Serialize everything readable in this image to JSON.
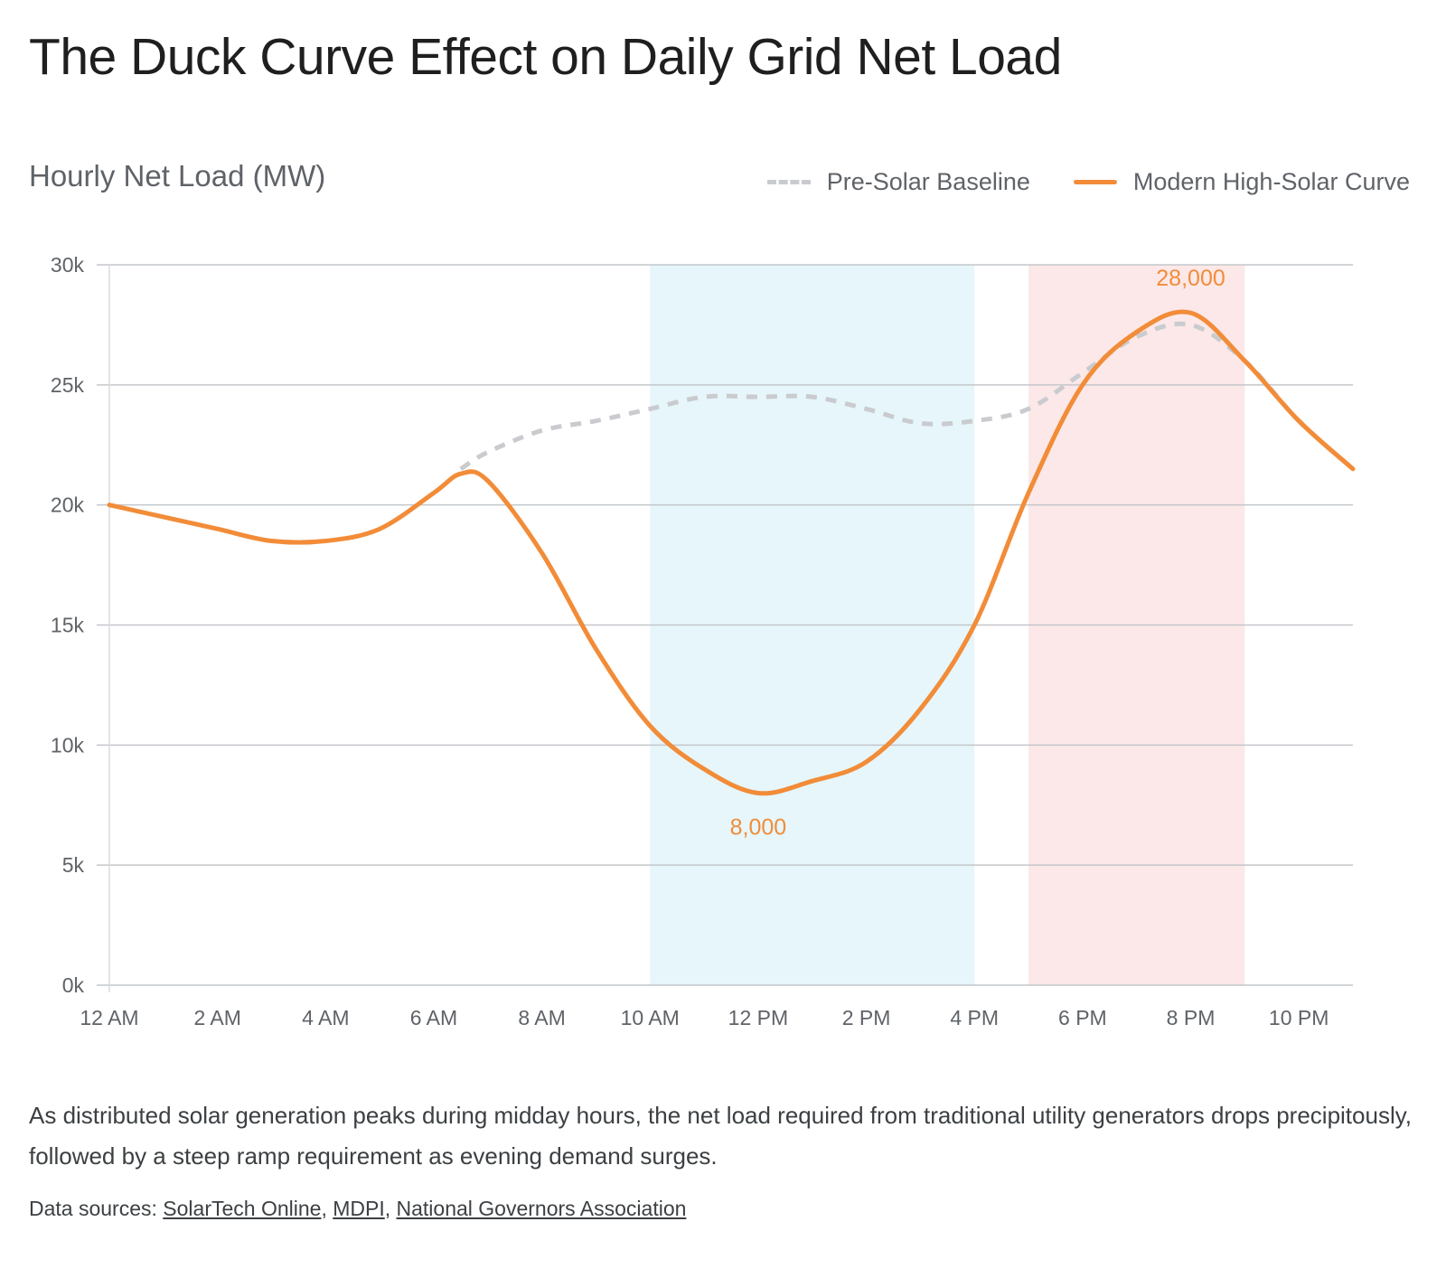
{
  "title": "The Duck Curve Effect on Daily Grid Net Load",
  "subtitle": "Hourly Net Load (MW)",
  "legend": {
    "baseline": "Pre-Solar Baseline",
    "modern": "Modern High-Solar Curve"
  },
  "description": "As distributed solar generation peaks during midday hours, the net load required from traditional utility generators drops precipitously, followed by a steep ramp requirement as evening demand surges.",
  "sources": {
    "prefix": "Data sources: ",
    "links": [
      "SolarTech Online",
      "MDPI",
      "National Governors Association"
    ]
  },
  "colors": {
    "modern": "#f28c38",
    "baseline": "#c9cbcf",
    "solar_band": "#e6f6fa",
    "ramp_band": "#fce8e8",
    "grid": "#c4c7cb"
  },
  "chart_data": {
    "type": "line",
    "x": [
      0,
      1,
      2,
      3,
      4,
      5,
      6,
      6.5,
      7,
      8,
      9,
      10,
      11,
      12,
      13,
      14,
      15,
      16,
      17,
      18,
      19,
      20,
      21,
      22,
      23
    ],
    "x_tick_labels": [
      "12 AM",
      "2 AM",
      "4 AM",
      "6 AM",
      "8 AM",
      "10 AM",
      "12 PM",
      "2 PM",
      "4 PM",
      "6 PM",
      "8 PM",
      "10 PM"
    ],
    "x_tick_hours": [
      0,
      2,
      4,
      6,
      8,
      10,
      12,
      14,
      16,
      18,
      20,
      22
    ],
    "xlim": [
      0,
      23
    ],
    "ylim": [
      0,
      30000
    ],
    "y_ticks": [
      0,
      5000,
      10000,
      15000,
      20000,
      25000,
      30000
    ],
    "y_tick_labels": [
      "0k",
      "5k",
      "10k",
      "15k",
      "20k",
      "25k",
      "30k"
    ],
    "grid": true,
    "legend_position": "top-right",
    "series": [
      {
        "name": "Pre-Solar Baseline",
        "style": "dashed",
        "x": [
          6.5,
          7,
          8,
          9,
          10,
          11,
          12,
          13,
          14,
          15,
          16,
          17,
          18,
          19,
          20,
          21,
          22,
          23
        ],
        "values": [
          21500,
          22200,
          23100,
          23500,
          24000,
          24500,
          24500,
          24500,
          24000,
          23400,
          23500,
          24000,
          25500,
          27000,
          27500,
          26000,
          23500,
          21500
        ]
      },
      {
        "name": "Modern High-Solar Curve",
        "style": "solid",
        "x": [
          0,
          1,
          2,
          3,
          4,
          5,
          6,
          6.5,
          7,
          8,
          9,
          10,
          11,
          12,
          13,
          14,
          15,
          16,
          17,
          18,
          19,
          20,
          21,
          22,
          23
        ],
        "values": [
          20000,
          19500,
          19000,
          18500,
          18500,
          19000,
          20500,
          21300,
          21000,
          18000,
          14000,
          10800,
          9000,
          8000,
          8500,
          9300,
          11500,
          15000,
          20500,
          25000,
          27200,
          28000,
          26000,
          23500,
          21500
        ]
      }
    ],
    "shaded_regions": [
      {
        "from": 10,
        "to": 16,
        "color": "#e6f6fa"
      },
      {
        "from": 17,
        "to": 21,
        "color": "#fce8e8"
      }
    ],
    "annotations": [
      {
        "x": 12,
        "y": 8000,
        "text": "8,000",
        "position": "below"
      },
      {
        "x": 20,
        "y": 28000,
        "text": "28,000",
        "position": "above"
      }
    ]
  }
}
